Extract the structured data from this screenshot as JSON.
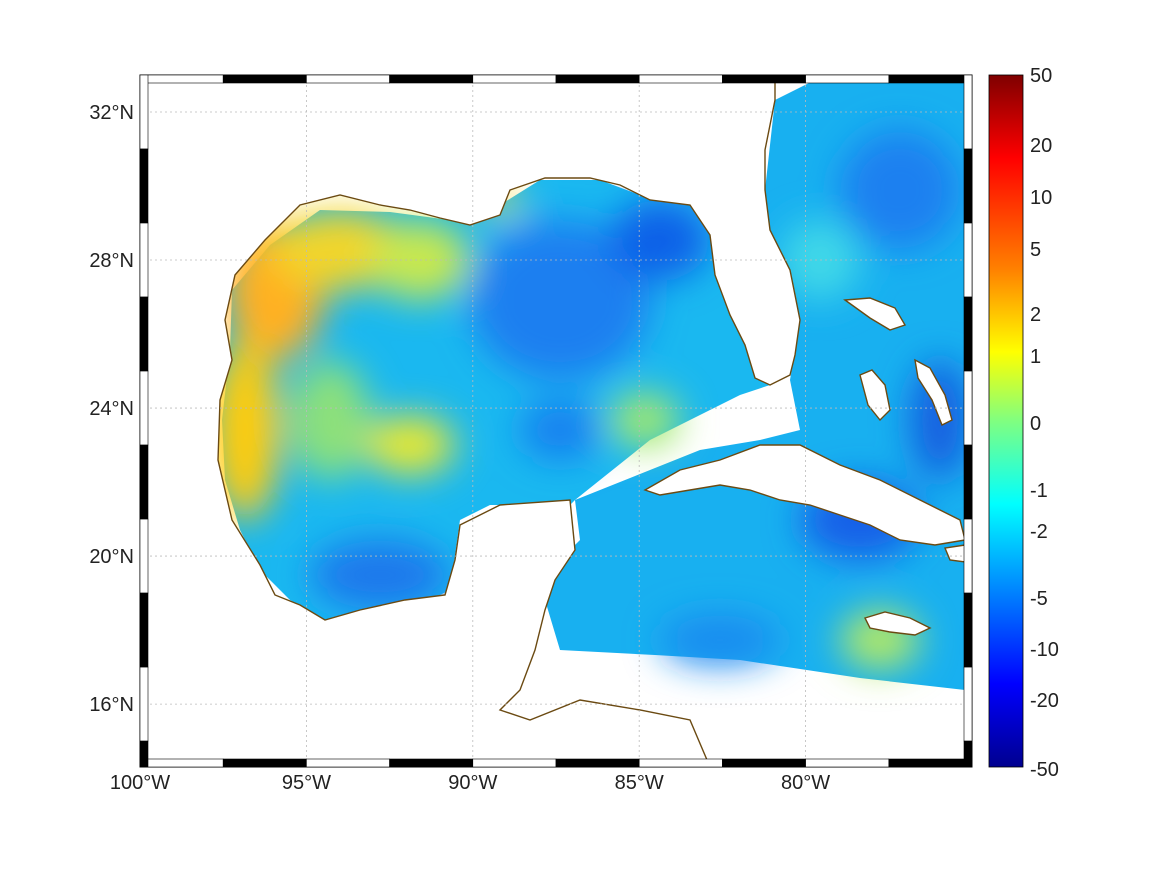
{
  "map": {
    "lon_range": [
      -100,
      -75
    ],
    "lat_range": [
      14.3,
      33
    ],
    "lon_ticks": [
      {
        "value": -100,
        "label": "100°W"
      },
      {
        "value": -95,
        "label": "95°W"
      },
      {
        "value": -90,
        "label": "90°W"
      },
      {
        "value": -85,
        "label": "85°W"
      },
      {
        "value": -80,
        "label": "80°W"
      }
    ],
    "lat_ticks": [
      {
        "value": 32,
        "label": "32°N"
      },
      {
        "value": 28,
        "label": "28°N"
      },
      {
        "value": 24,
        "label": "24°N"
      },
      {
        "value": 20,
        "label": "20°N"
      },
      {
        "value": 16,
        "label": "16°N"
      }
    ],
    "grid": true,
    "coastline_color": "#6b4a12",
    "field_description": "gridded ocean field over Gulf of Mexico, Caribbean and western Atlantic"
  },
  "colorbar": {
    "labels": [
      "50",
      "20",
      "10",
      "5",
      "2",
      "1",
      "0",
      "-1",
      "-2",
      "-5",
      "-10",
      "-20",
      "-50"
    ],
    "colormap": "jet",
    "colors": [
      "#7f0000",
      "#ff0000",
      "#ff8000",
      "#ffff00",
      "#80ff80",
      "#00ffff",
      "#0080ff",
      "#0000ff",
      "#00008f"
    ]
  }
}
